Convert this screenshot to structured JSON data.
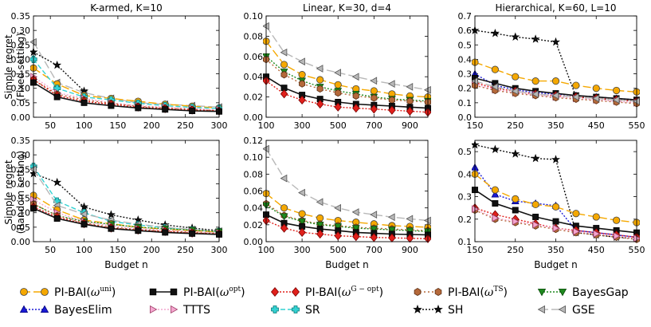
{
  "figure": {
    "row_labels": [
      [
        "Simple regret",
        "(Fixed setting)"
      ],
      [
        "Simple regret",
        "(Random setting)"
      ]
    ],
    "xlabel": "Budget n"
  },
  "legend": [
    {
      "key": "uni",
      "prefix": "PI-BAI(",
      "sup": "uni",
      "color": "#f5a800",
      "edge": "#444444",
      "marker": "circle",
      "dash": "10,4"
    },
    {
      "key": "opt",
      "prefix": "PI-BAI(",
      "sup": "opt",
      "color": "#111111",
      "edge": "#000000",
      "marker": "square",
      "dash": ""
    },
    {
      "key": "gopt",
      "prefix": "PI-BAI(",
      "sup": "G − opt",
      "color": "#e0201b",
      "edge": "#7a0000",
      "marker": "diamond",
      "dash": "2,2"
    },
    {
      "key": "ts",
      "prefix": "PI-BAI(",
      "sup": "TS",
      "color": "#b5693a",
      "edge": "#5a2e14",
      "marker": "hexagon",
      "dash": "2,3"
    },
    {
      "key": "bayesgap",
      "label": "BayesGap",
      "color": "#1f8a1f",
      "edge": "#0b4a0b",
      "marker": "triangle-down",
      "dash": "2,2"
    },
    {
      "key": "bayeselim",
      "label": "BayesElim",
      "color": "#1b1bd6",
      "edge": "#00007a",
      "marker": "triangle-up",
      "dash": "2,2"
    },
    {
      "key": "ttts",
      "label": "TTTS",
      "color": "#f4a6cf",
      "edge": "#a0406a",
      "marker": "triangle-right",
      "dash": "2,2"
    },
    {
      "key": "sr",
      "label": "SR",
      "color": "#34d2d2",
      "edge": "#0a7a7a",
      "marker": "plus",
      "dash": "6,3"
    },
    {
      "key": "sh",
      "label": "SH",
      "color": "#111111",
      "edge": "#000000",
      "marker": "star",
      "dash": "2,2"
    },
    {
      "key": "gse",
      "label": "GSE",
      "color": "#b8b8b8",
      "edge": "#555555",
      "marker": "triangle-left",
      "dash": "10,4"
    }
  ],
  "chart_data": [
    {
      "type": "line",
      "title": "K-armed, K=10",
      "xlabel": "",
      "ylabel": "Simple regret (Fixed setting)",
      "xlim": [
        25,
        300
      ],
      "ylim": [
        0,
        0.35
      ],
      "xticks": [
        50,
        100,
        150,
        200,
        250,
        300
      ],
      "yticks": [
        0.0,
        0.05,
        0.1,
        0.15,
        0.2,
        0.25,
        0.3,
        0.35
      ],
      "ytick_labels": [
        "0.00",
        "0.05",
        "0.10",
        "0.15",
        "0.20",
        "0.25",
        "0.30",
        "0.35"
      ],
      "x": [
        25,
        60,
        100,
        140,
        180,
        220,
        260,
        300
      ],
      "series": [
        {
          "name": "gse",
          "values": [
            0.26,
            0.12,
            0.085,
            0.065,
            0.05,
            0.045,
            0.04,
            0.035
          ]
        },
        {
          "name": "sh",
          "values": [
            0.225,
            0.18,
            0.09,
            null,
            null,
            null,
            null,
            null
          ]
        },
        {
          "name": "uni",
          "values": [
            0.17,
            0.115,
            0.075,
            0.065,
            0.055,
            0.045,
            0.038,
            0.032
          ]
        },
        {
          "name": "sr",
          "values": [
            0.2,
            0.1,
            0.07,
            0.06,
            0.048,
            0.04,
            0.034,
            0.03
          ]
        },
        {
          "name": "ttts",
          "values": [
            0.14,
            0.085,
            0.065,
            0.05,
            0.04,
            0.035,
            0.03,
            0.025
          ]
        },
        {
          "name": "ts",
          "values": [
            0.13,
            0.08,
            0.06,
            0.048,
            0.038,
            0.032,
            0.027,
            0.022
          ]
        },
        {
          "name": "gopt",
          "values": [
            0.13,
            0.075,
            0.055,
            0.045,
            0.035,
            0.03,
            0.025,
            0.022
          ]
        },
        {
          "name": "opt",
          "values": [
            0.12,
            0.07,
            0.05,
            0.04,
            0.032,
            0.027,
            0.022,
            0.02
          ]
        }
      ]
    },
    {
      "type": "line",
      "title": "Linear, K=30, d=4",
      "xlabel": "",
      "ylabel": "",
      "xlim": [
        100,
        1000
      ],
      "ylim": [
        0,
        0.1
      ],
      "xticks": [
        100,
        300,
        500,
        700,
        900
      ],
      "yticks": [
        0.0,
        0.02,
        0.04,
        0.06,
        0.08,
        0.1
      ],
      "ytick_labels": [
        "0.00",
        "0.02",
        "0.04",
        "0.06",
        "0.08",
        "0.10"
      ],
      "x": [
        100,
        200,
        300,
        400,
        500,
        600,
        700,
        800,
        900,
        1000
      ],
      "series": [
        {
          "name": "gse",
          "values": [
            0.09,
            0.064,
            0.055,
            0.048,
            0.044,
            0.04,
            0.036,
            0.033,
            0.03,
            0.027
          ]
        },
        {
          "name": "uni",
          "values": [
            0.075,
            0.052,
            0.042,
            0.037,
            0.032,
            0.028,
            0.026,
            0.023,
            0.021,
            0.02
          ]
        },
        {
          "name": "bayesgap",
          "values": [
            0.06,
            0.045,
            0.036,
            0.03,
            0.026,
            0.023,
            0.02,
            0.018,
            0.017,
            0.016
          ]
        },
        {
          "name": "ts",
          "values": [
            0.057,
            0.042,
            0.033,
            0.028,
            0.024,
            0.021,
            0.019,
            0.017,
            0.016,
            0.015
          ]
        },
        {
          "name": "opt",
          "values": [
            0.04,
            0.029,
            0.022,
            0.018,
            0.015,
            0.013,
            0.012,
            0.011,
            0.01,
            0.009
          ]
        },
        {
          "name": "gopt",
          "values": [
            0.036,
            0.023,
            0.017,
            0.013,
            0.01,
            0.009,
            0.008,
            0.007,
            0.006,
            0.005
          ]
        }
      ]
    },
    {
      "type": "line",
      "title": "Hierarchical, K=60, L=10",
      "xlabel": "",
      "ylabel": "",
      "xlim": [
        150,
        550
      ],
      "ylim": [
        0,
        0.7
      ],
      "xticks": [
        150,
        250,
        350,
        450,
        550
      ],
      "yticks": [
        0.0,
        0.1,
        0.2,
        0.3,
        0.4,
        0.5,
        0.6,
        0.7
      ],
      "ytick_labels": [
        "0.0",
        "0.1",
        "0.2",
        "0.3",
        "0.4",
        "0.5",
        "0.6",
        "0.7"
      ],
      "x": [
        150,
        200,
        250,
        300,
        350,
        400,
        450,
        500,
        550
      ],
      "series": [
        {
          "name": "sh",
          "values": [
            0.6,
            0.58,
            0.555,
            0.54,
            0.52,
            0.14,
            0.13,
            0.12,
            0.115
          ]
        },
        {
          "name": "uni",
          "values": [
            0.38,
            0.33,
            0.28,
            0.25,
            0.25,
            0.22,
            0.2,
            0.185,
            0.175
          ]
        },
        {
          "name": "bayeselim",
          "values": [
            0.3,
            0.22,
            0.19,
            0.17,
            0.16,
            0.15,
            0.14,
            0.13,
            0.12
          ]
        },
        {
          "name": "opt",
          "values": [
            0.27,
            0.235,
            0.2,
            0.18,
            0.165,
            0.15,
            0.14,
            0.13,
            0.12
          ]
        },
        {
          "name": "gopt",
          "values": [
            0.24,
            0.2,
            0.18,
            0.16,
            0.15,
            0.14,
            0.13,
            0.12,
            0.11
          ]
        },
        {
          "name": "ttts",
          "values": [
            0.23,
            0.19,
            0.17,
            0.155,
            0.14,
            0.13,
            0.12,
            0.11,
            0.1
          ]
        },
        {
          "name": "ts",
          "values": [
            0.22,
            0.185,
            0.165,
            0.15,
            0.135,
            0.125,
            0.115,
            0.105,
            0.095
          ]
        },
        {
          "name": "gse",
          "values": [
            0.25,
            0.21,
            0.18,
            0.16,
            0.15,
            0.14,
            0.13,
            0.12,
            0.11
          ]
        }
      ]
    },
    {
      "type": "line",
      "title": "",
      "xlabel": "Budget n",
      "ylabel": "Simple regret (Random setting)",
      "xlim": [
        25,
        300
      ],
      "ylim": [
        0,
        0.35
      ],
      "xticks": [
        50,
        100,
        150,
        200,
        250,
        300
      ],
      "yticks": [
        0.0,
        0.05,
        0.1,
        0.15,
        0.2,
        0.25,
        0.3,
        0.35
      ],
      "ytick_labels": [
        "0.00",
        "0.05",
        "0.10",
        "0.15",
        "0.20",
        "0.25",
        "0.30",
        "0.35"
      ],
      "x": [
        25,
        60,
        100,
        140,
        180,
        220,
        260,
        300
      ],
      "series": [
        {
          "name": "sh",
          "values": [
            0.235,
            0.205,
            0.12,
            0.093,
            0.075,
            0.058,
            0.047,
            0.038
          ]
        },
        {
          "name": "sr",
          "values": [
            0.26,
            0.14,
            0.1,
            0.07,
            0.058,
            0.048,
            0.04,
            0.035
          ]
        },
        {
          "name": "gse",
          "values": [
            0.25,
            0.125,
            0.095,
            0.075,
            0.06,
            0.05,
            0.042,
            0.036
          ]
        },
        {
          "name": "uni",
          "values": [
            0.16,
            0.11,
            0.075,
            0.062,
            0.05,
            0.043,
            0.038,
            0.033
          ]
        },
        {
          "name": "bayesgap",
          "values": [
            0.13,
            0.09,
            0.07,
            0.06,
            0.05,
            0.045,
            0.04,
            0.035
          ]
        },
        {
          "name": "ttts",
          "values": [
            0.145,
            0.1,
            0.07,
            0.055,
            0.045,
            0.04,
            0.035,
            0.03
          ]
        },
        {
          "name": "ts",
          "values": [
            0.13,
            0.09,
            0.065,
            0.05,
            0.042,
            0.037,
            0.032,
            0.028
          ]
        },
        {
          "name": "gopt",
          "values": [
            0.12,
            0.085,
            0.062,
            0.047,
            0.04,
            0.035,
            0.03,
            0.027
          ]
        },
        {
          "name": "opt",
          "values": [
            0.115,
            0.08,
            0.06,
            0.045,
            0.038,
            0.032,
            0.028,
            0.025
          ]
        }
      ]
    },
    {
      "type": "line",
      "title": "",
      "xlabel": "Budget n",
      "ylabel": "",
      "xlim": [
        100,
        1000
      ],
      "ylim": [
        0,
        0.12
      ],
      "xticks": [
        100,
        300,
        500,
        700,
        900
      ],
      "yticks": [
        0.0,
        0.02,
        0.04,
        0.06,
        0.08,
        0.1,
        0.12
      ],
      "ytick_labels": [
        "0.00",
        "0.02",
        "0.04",
        "0.06",
        "0.08",
        "0.10",
        "0.12"
      ],
      "x": [
        100,
        200,
        300,
        400,
        500,
        600,
        700,
        800,
        900,
        1000
      ],
      "series": [
        {
          "name": "gse",
          "values": [
            0.11,
            0.075,
            0.058,
            0.047,
            0.04,
            0.035,
            0.032,
            0.029,
            0.027,
            0.025
          ]
        },
        {
          "name": "uni",
          "values": [
            0.057,
            0.04,
            0.033,
            0.028,
            0.025,
            0.023,
            0.021,
            0.019,
            0.018,
            0.017
          ]
        },
        {
          "name": "ts",
          "values": [
            0.045,
            0.031,
            0.025,
            0.021,
            0.019,
            0.017,
            0.016,
            0.015,
            0.014,
            0.013
          ]
        },
        {
          "name": "bayesgap",
          "values": [
            0.043,
            0.03,
            0.024,
            0.02,
            0.018,
            0.016,
            0.015,
            0.014,
            0.013,
            0.012
          ]
        },
        {
          "name": "opt",
          "values": [
            0.032,
            0.022,
            0.018,
            0.015,
            0.013,
            0.011,
            0.01,
            0.009,
            0.0085,
            0.008
          ]
        },
        {
          "name": "gopt",
          "values": [
            0.025,
            0.016,
            0.011,
            0.009,
            0.007,
            0.006,
            0.005,
            0.0045,
            0.004,
            0.0035
          ]
        }
      ]
    },
    {
      "type": "line",
      "title": "",
      "xlabel": "Budget n",
      "ylabel": "",
      "xlim": [
        150,
        550
      ],
      "ylim": [
        0.1,
        0.55
      ],
      "xticks": [
        150,
        250,
        350,
        450,
        550
      ],
      "yticks": [
        0.1,
        0.2,
        0.3,
        0.4,
        0.5
      ],
      "ytick_labels": [
        "0.1",
        "0.2",
        "0.3",
        "0.4",
        "0.5"
      ],
      "x": [
        150,
        200,
        250,
        300,
        350,
        400,
        450,
        500,
        550
      ],
      "series": [
        {
          "name": "sh",
          "values": [
            0.53,
            0.51,
            0.49,
            0.47,
            0.465,
            0.14,
            0.13,
            0.12,
            0.115
          ]
        },
        {
          "name": "bayeselim",
          "values": [
            0.43,
            0.31,
            0.28,
            0.27,
            0.26,
            0.15,
            0.14,
            0.13,
            0.12
          ]
        },
        {
          "name": "uni",
          "values": [
            0.4,
            0.33,
            0.29,
            0.265,
            0.255,
            0.225,
            0.21,
            0.195,
            0.185
          ]
        },
        {
          "name": "opt",
          "values": [
            0.33,
            0.27,
            0.24,
            0.21,
            0.19,
            0.17,
            0.16,
            0.15,
            0.14
          ]
        },
        {
          "name": "gopt",
          "values": [
            0.25,
            0.22,
            0.2,
            0.18,
            0.16,
            0.15,
            0.14,
            0.13,
            0.12
          ]
        },
        {
          "name": "ts",
          "values": [
            0.24,
            0.2,
            0.185,
            0.17,
            0.155,
            0.14,
            0.13,
            0.12,
            0.11
          ]
        },
        {
          "name": "ttts",
          "values": [
            0.245,
            0.205,
            0.19,
            0.175,
            0.16,
            0.145,
            0.135,
            0.125,
            0.115
          ]
        }
      ]
    }
  ]
}
